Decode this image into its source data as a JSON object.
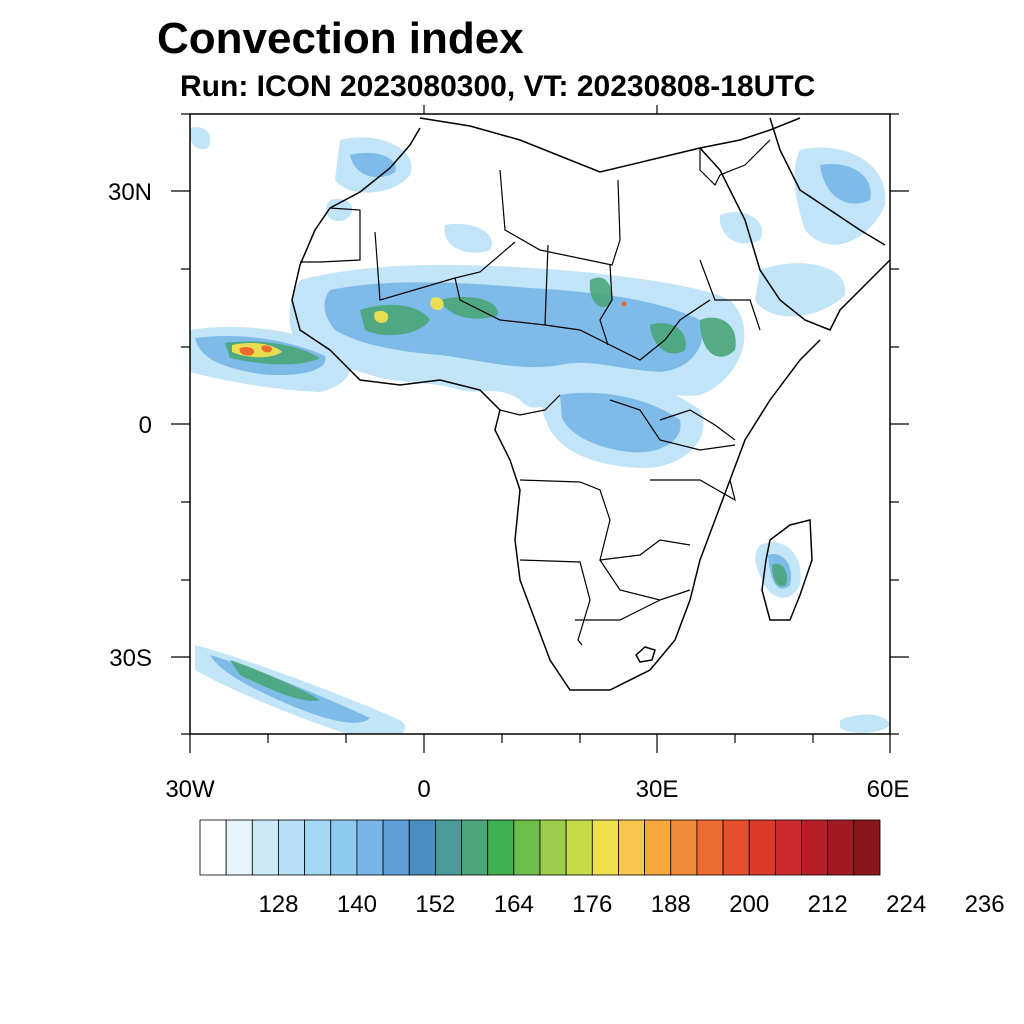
{
  "title": "Convection index",
  "subtitle": "Run: ICON 2023080300,  VT: 20230808-18UTC",
  "map": {
    "lat_labels": [
      "30N",
      "0",
      "30S"
    ],
    "lon_labels": [
      "30W",
      "0",
      "30E",
      "60E"
    ]
  },
  "colorbar": {
    "labels": [
      "128",
      "140",
      "152",
      "164",
      "176",
      "188",
      "200",
      "212",
      "224",
      "236"
    ],
    "colors": [
      "#ffffff",
      "#e8f4fb",
      "#cde9f8",
      "#b7e0f7",
      "#a2d8f4",
      "#8ec9ee",
      "#77b6e6",
      "#5d9fd8",
      "#4a8fc2",
      "#4a9b9b",
      "#4aa67a",
      "#3fb04f",
      "#6cbd4a",
      "#9ccc4a",
      "#c8dc4a",
      "#f0e04e",
      "#f8c64a",
      "#f6a83f",
      "#f28a37",
      "#ee6b30",
      "#e8502b",
      "#dc3a2a",
      "#cc2a2a",
      "#b71f27",
      "#a11922",
      "#8c151d"
    ]
  }
}
